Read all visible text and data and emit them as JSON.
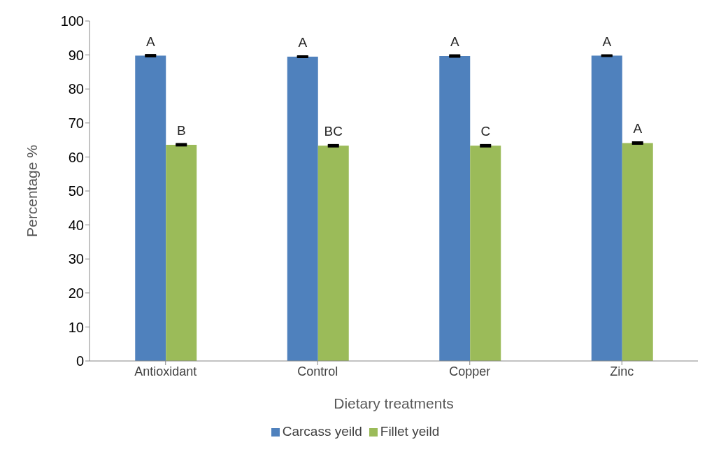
{
  "chart_data": {
    "type": "bar",
    "xlabel": "Dietary treatments",
    "ylabel": "Percentage %",
    "categories": [
      "Antioxidant",
      "Control",
      "Copper",
      "Zinc"
    ],
    "series": [
      {
        "name": "Carcass yeild",
        "color": "#4f81bd",
        "values": [
          89.8,
          89.5,
          89.7,
          89.8
        ],
        "errors": [
          0.2,
          0.1,
          0.2,
          0.1
        ],
        "value_labels": [
          "A",
          "A",
          "A",
          "A"
        ]
      },
      {
        "name": "Fillet yeild",
        "color": "#9bbb59",
        "values": [
          63.6,
          63.3,
          63.3,
          64.1
        ],
        "errors": [
          0.2,
          0.2,
          0.2,
          0.2
        ],
        "value_labels": [
          "B",
          "BC",
          "C",
          "A"
        ]
      }
    ],
    "ylim": [
      0,
      100
    ],
    "yticks": [
      0,
      10,
      20,
      30,
      40,
      50,
      60,
      70,
      80,
      90,
      100
    ],
    "grid": false,
    "legend": "bottom"
  }
}
